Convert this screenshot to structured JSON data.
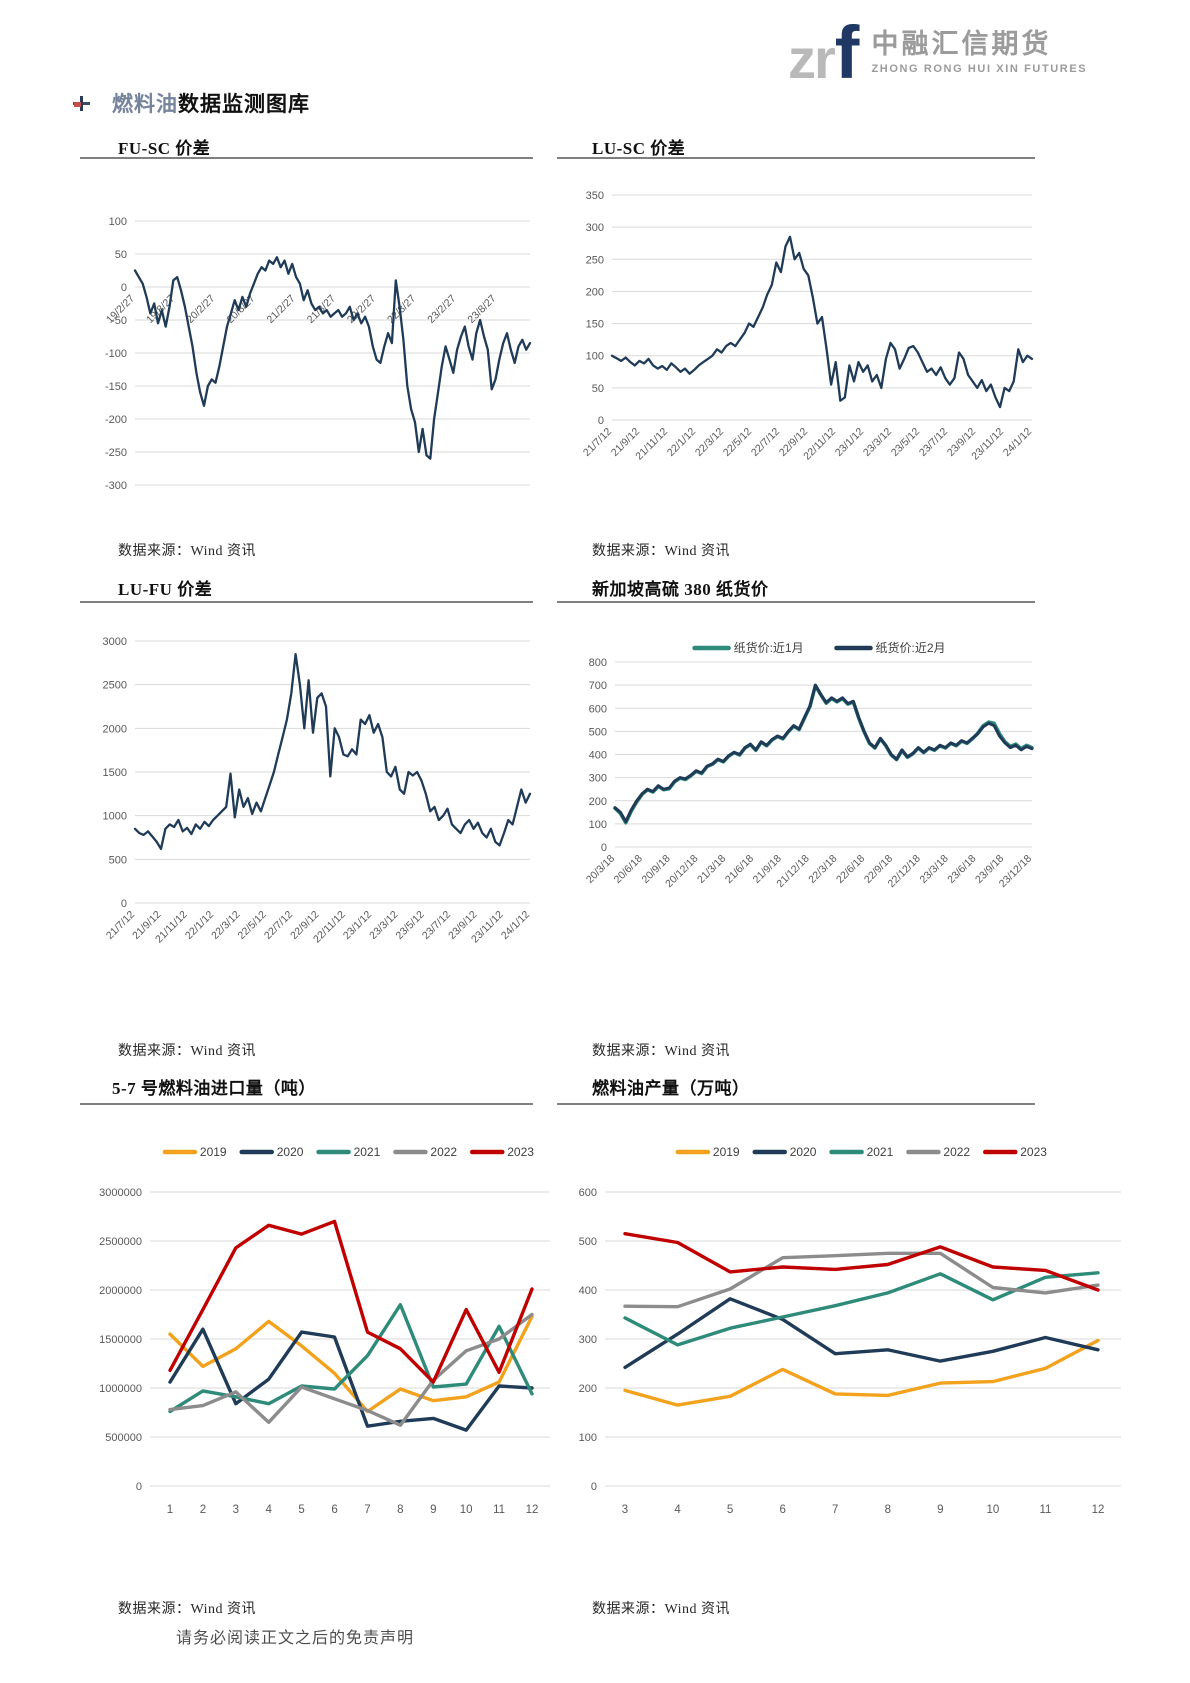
{
  "page": {
    "logo": {
      "zr": "zr",
      "f": "f",
      "cn": "中融汇信期货",
      "en": "ZHONG RONG HUI XIN FUTURES"
    },
    "section": {
      "highlight": "燃料油",
      "rest": "数据监测图库"
    },
    "footer": "请务必阅读正文之后的免责声明"
  },
  "colors": {
    "line_navy": "#1F3B57",
    "teal": "#2E8B7A",
    "orange": "#F2A21C",
    "gray": "#8C8C8C",
    "red": "#C00000",
    "grid": "#D9D9D9",
    "tick_text": "#595959",
    "logo_blue": "#1F3864",
    "logo_gray": "#B9B9B9"
  },
  "charts": [
    {
      "id": "fu-sc",
      "title": "FU-SC 价差",
      "source": "数据来源：Wind 资讯",
      "chart_data": {
        "type": "line",
        "grid": true,
        "legend": false,
        "ylim": [
          -300,
          100
        ],
        "yticks": [
          100,
          50,
          0,
          -50,
          -100,
          -150,
          -200,
          -250,
          -300
        ],
        "x_labels": [
          "19/2/27",
          "19/8/27",
          "20/2/27",
          "20/8/27",
          "21/2/27",
          "21/8/27",
          "22/2/27",
          "22/8/27",
          "23/2/27",
          "23/8/27"
        ],
        "x_label_anchor": "zero-axis",
        "series": [
          {
            "name": "FU-SC价差",
            "color": "#1F3B57",
            "values": [
              25,
              15,
              5,
              -15,
              -40,
              -25,
              -55,
              -35,
              -60,
              -30,
              10,
              15,
              -5,
              -30,
              -60,
              -90,
              -130,
              -160,
              -180,
              -150,
              -140,
              -145,
              -120,
              -90,
              -60,
              -40,
              -20,
              -35,
              -15,
              -30,
              -10,
              5,
              20,
              30,
              25,
              40,
              35,
              45,
              30,
              40,
              20,
              35,
              15,
              5,
              -20,
              -5,
              -25,
              -35,
              -30,
              -40,
              -35,
              -45,
              -40,
              -35,
              -45,
              -40,
              -30,
              -50,
              -40,
              -55,
              -45,
              -60,
              -90,
              -110,
              -115,
              -90,
              -70,
              -85,
              10,
              -30,
              -80,
              -150,
              -185,
              -205,
              -250,
              -215,
              -255,
              -260,
              -200,
              -160,
              -120,
              -90,
              -110,
              -130,
              -95,
              -75,
              -60,
              -90,
              -110,
              -70,
              -50,
              -75,
              -95,
              -155,
              -140,
              -110,
              -85,
              -70,
              -95,
              -115,
              -90,
              -80,
              -95,
              -85
            ]
          }
        ]
      }
    },
    {
      "id": "lu-sc",
      "title": "LU-SC 价差",
      "source": "数据来源：Wind 资讯",
      "chart_data": {
        "type": "line",
        "grid": true,
        "legend": false,
        "ylim": [
          0,
          350
        ],
        "yticks": [
          350,
          300,
          250,
          200,
          150,
          100,
          50,
          0
        ],
        "x_labels": [
          "21/7/12",
          "21/9/12",
          "21/11/12",
          "22/1/12",
          "22/3/12",
          "22/5/12",
          "22/7/12",
          "22/9/12",
          "22/11/12",
          "23/1/12",
          "23/3/12",
          "23/5/12",
          "23/7/12",
          "23/9/12",
          "23/11/12",
          "24/1/12"
        ],
        "x_label_anchor": "bottom",
        "series": [
          {
            "name": "LU-SC价差",
            "color": "#1F3B57",
            "values": [
              100,
              96,
              92,
              97,
              90,
              85,
              92,
              88,
              95,
              85,
              80,
              84,
              78,
              88,
              82,
              75,
              80,
              72,
              78,
              85,
              90,
              95,
              100,
              110,
              105,
              115,
              120,
              115,
              125,
              135,
              150,
              145,
              160,
              175,
              195,
              210,
              245,
              230,
              270,
              285,
              250,
              260,
              235,
              225,
              190,
              150,
              160,
              110,
              55,
              90,
              30,
              35,
              85,
              60,
              90,
              75,
              85,
              60,
              70,
              50,
              95,
              120,
              110,
              80,
              95,
              112,
              115,
              105,
              90,
              75,
              80,
              70,
              82,
              65,
              55,
              65,
              105,
              95,
              70,
              60,
              50,
              62,
              45,
              55,
              35,
              20,
              50,
              45,
              60,
              110,
              90,
              100,
              95
            ]
          }
        ]
      }
    },
    {
      "id": "lu-fu",
      "title": "LU-FU 价差",
      "source": "数据来源：Wind 资讯",
      "chart_data": {
        "type": "line",
        "grid": true,
        "legend": false,
        "ylim": [
          0,
          3000
        ],
        "yticks": [
          3000,
          2500,
          2000,
          1500,
          1000,
          500,
          0
        ],
        "x_labels": [
          "21/7/12",
          "21/9/12",
          "21/11/12",
          "22/1/12",
          "22/3/12",
          "22/5/12",
          "22/7/12",
          "22/9/12",
          "22/11/12",
          "23/1/12",
          "23/3/12",
          "23/5/12",
          "23/7/12",
          "23/9/12",
          "23/11/12",
          "24/1/12"
        ],
        "x_label_anchor": "bottom",
        "series": [
          {
            "name": "LU-FU价差",
            "color": "#1F3B57",
            "values": [
              850,
              800,
              780,
              820,
              760,
              700,
              620,
              850,
              900,
              870,
              950,
              820,
              860,
              790,
              900,
              850,
              930,
              880,
              950,
              1000,
              1050,
              1100,
              1480,
              980,
              1300,
              1100,
              1200,
              1020,
              1150,
              1050,
              1200,
              1350,
              1500,
              1700,
              1900,
              2100,
              2400,
              2850,
              2500,
              2000,
              2550,
              1950,
              2350,
              2400,
              2250,
              1450,
              2000,
              1900,
              1700,
              1680,
              1760,
              1700,
              2100,
              2050,
              2150,
              1950,
              2050,
              1900,
              1500,
              1450,
              1560,
              1300,
              1250,
              1500,
              1460,
              1500,
              1400,
              1250,
              1050,
              1100,
              950,
              1000,
              1080,
              900,
              850,
              800,
              900,
              950,
              850,
              920,
              800,
              750,
              850,
              700,
              660,
              800,
              950,
              900,
              1100,
              1300,
              1150,
              1250
            ]
          }
        ]
      }
    },
    {
      "id": "sg-hs380-paper",
      "title": "新加坡高硫 380 纸货价",
      "source": "数据来源：Wind 资讯",
      "chart_data": {
        "type": "line",
        "grid": true,
        "legend": "top",
        "ylim": [
          0,
          800
        ],
        "yticks": [
          800,
          700,
          600,
          500,
          400,
          300,
          200,
          100,
          0
        ],
        "x_labels": [
          "20/3/18",
          "20/6/18",
          "20/9/18",
          "20/12/18",
          "21/3/18",
          "21/6/18",
          "21/9/18",
          "21/12/18",
          "22/3/18",
          "22/6/18",
          "22/9/18",
          "22/12/18",
          "23/3/18",
          "23/6/18",
          "23/9/18",
          "23/12/18"
        ],
        "x_label_anchor": "bottom",
        "series": [
          {
            "name": "纸货价:近1月",
            "color": "#2E8B7A",
            "values": [
              168,
              145,
              105,
              155,
              195,
              228,
              248,
              238,
              262,
              248,
              252,
              282,
              298,
              292,
              308,
              328,
              318,
              348,
              358,
              378,
              368,
              393,
              408,
              398,
              428,
              443,
              418,
              453,
              438,
              463,
              478,
              468,
              498,
              523,
              508,
              558,
              608,
              698,
              658,
              622,
              642,
              628,
              642,
              618,
              628,
              558,
              498,
              448,
              428,
              468,
              438,
              398,
              378,
              418,
              388,
              403,
              428,
              408,
              428,
              418,
              438,
              428,
              448,
              438,
              458,
              448,
              468,
              492,
              525,
              540,
              535,
              490,
              455,
              435,
              445,
              425,
              440,
              430
            ]
          },
          {
            "name": "纸货价:近2月",
            "color": "#1F3B57",
            "values": [
              170,
              150,
              110,
              160,
              200,
              230,
              250,
              240,
              265,
              250,
              255,
              285,
              300,
              295,
              310,
              330,
              320,
              350,
              360,
              380,
              370,
              395,
              410,
              400,
              430,
              445,
              420,
              455,
              440,
              465,
              480,
              470,
              500,
              525,
              510,
              560,
              610,
              700,
              660,
              625,
              645,
              630,
              645,
              620,
              630,
              560,
              500,
              450,
              430,
              470,
              440,
              400,
              380,
              420,
              390,
              405,
              430,
              410,
              430,
              420,
              440,
              430,
              450,
              440,
              460,
              450,
              470,
              490,
              520,
              535,
              525,
              480,
              450,
              430,
              440,
              420,
              435,
              425
            ]
          }
        ]
      }
    },
    {
      "id": "fueloil-imports",
      "title": "5-7 号燃料油进口量（吨）",
      "source": "数据来源：Wind 资讯",
      "chart_data": {
        "type": "line",
        "grid": true,
        "legend": "top",
        "ylim": [
          0,
          3000000
        ],
        "yticks": [
          3000000,
          2500000,
          2000000,
          1500000,
          1000000,
          500000,
          0
        ],
        "categories": [
          "1",
          "2",
          "3",
          "4",
          "5",
          "6",
          "7",
          "8",
          "9",
          "10",
          "11",
          "12"
        ],
        "series": [
          {
            "name": "2019",
            "color": "#F2A21C",
            "values": [
              1550000,
              1220000,
              1400000,
              1680000,
              1430000,
              1150000,
              760000,
              990000,
              870000,
              910000,
              1060000,
              1730000
            ]
          },
          {
            "name": "2020",
            "color": "#1F3B57",
            "values": [
              1060000,
              1600000,
              840000,
              1090000,
              1570000,
              1520000,
              610000,
              660000,
              690000,
              570000,
              1020000,
              1000000
            ]
          },
          {
            "name": "2021",
            "color": "#2E8B7A",
            "values": [
              760000,
              970000,
              910000,
              840000,
              1020000,
              990000,
              1330000,
              1850000,
              1010000,
              1040000,
              1630000,
              940000
            ]
          },
          {
            "name": "2022",
            "color": "#8C8C8C",
            "values": [
              780000,
              820000,
              960000,
              650000,
              1010000,
              890000,
              770000,
              620000,
              1080000,
              1380000,
              1500000,
              1750000
            ]
          },
          {
            "name": "2023",
            "color": "#C00000",
            "values": [
              1180000,
              1800000,
              2430000,
              2660000,
              2570000,
              2700000,
              1570000,
              1400000,
              1060000,
              1800000,
              1160000,
              2010000
            ]
          }
        ]
      }
    },
    {
      "id": "fueloil-production",
      "title": "燃料油产量（万吨）",
      "source": "数据来源：Wind 资讯",
      "chart_data": {
        "type": "line",
        "grid": true,
        "legend": "top",
        "ylim": [
          0,
          600
        ],
        "yticks": [
          600,
          500,
          400,
          300,
          200,
          100,
          0
        ],
        "categories": [
          "3",
          "4",
          "5",
          "6",
          "7",
          "8",
          "9",
          "10",
          "11",
          "12"
        ],
        "series": [
          {
            "name": "2019",
            "color": "#F2A21C",
            "values": [
              195,
              165,
              183,
              238,
              188,
              185,
              210,
              213,
              240,
              297
            ]
          },
          {
            "name": "2020",
            "color": "#1F3B57",
            "values": [
              242,
              310,
              382,
              340,
              270,
              278,
              255,
              275,
              303,
              278
            ]
          },
          {
            "name": "2021",
            "color": "#2E8B7A",
            "values": [
              343,
              288,
              322,
              345,
              368,
              394,
              433,
              380,
              426,
              435
            ]
          },
          {
            "name": "2022",
            "color": "#8C8C8C",
            "values": [
              367,
              366,
              402,
              466,
              470,
              475,
              475,
              405,
              394,
              410
            ]
          },
          {
            "name": "2023",
            "color": "#C00000",
            "values": [
              515,
              497,
              437,
              447,
              442,
              452,
              488,
              447,
              440,
              400
            ]
          }
        ]
      }
    }
  ]
}
